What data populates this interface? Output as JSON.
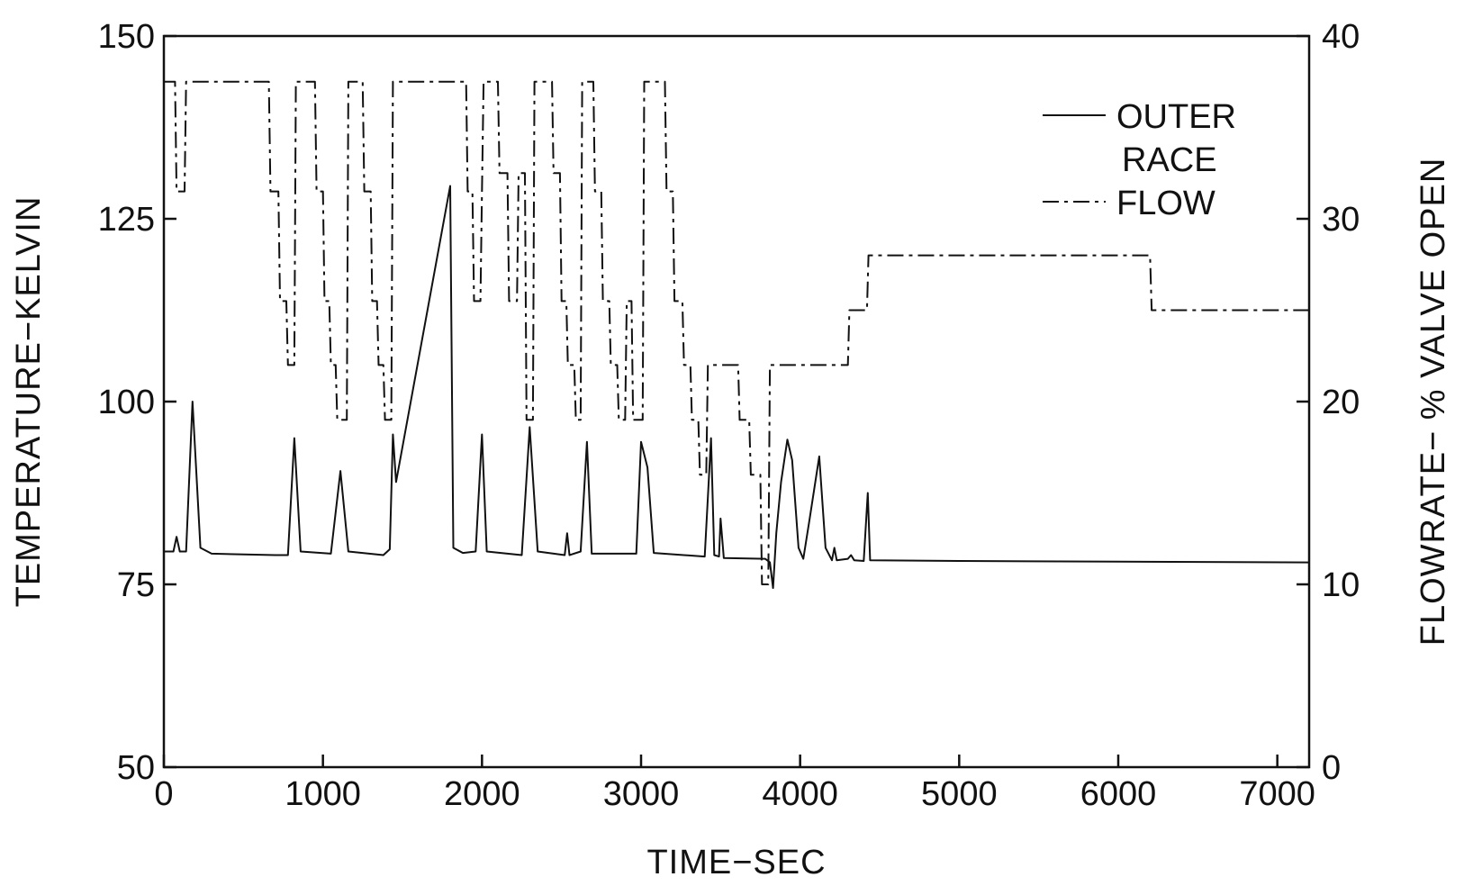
{
  "chart_data": {
    "type": "line",
    "xlabel": "TIME−SEC",
    "ylabel_left": "TEMPERATURE−KELVIN",
    "ylabel_right": "FLOWRATE− % VALVE OPEN",
    "xlim": [
      0,
      7200
    ],
    "ylim_left": [
      50,
      150
    ],
    "ylim_right": [
      0,
      40
    ],
    "x_ticks": [
      0,
      1000,
      2000,
      3000,
      4000,
      5000,
      6000,
      7000
    ],
    "y_left_ticks": [
      50,
      75,
      100,
      125,
      150
    ],
    "y_right_ticks": [
      0,
      10,
      20,
      30,
      40
    ],
    "grid": false,
    "legend_position": "top-right",
    "legend": [
      "OUTER",
      "RACE",
      "FLOW"
    ],
    "series": [
      {
        "name": "OUTER RACE",
        "axis": "left",
        "style": "solid",
        "points": [
          [
            0,
            79.5
          ],
          [
            60,
            79.5
          ],
          [
            80,
            81.5
          ],
          [
            100,
            79.5
          ],
          [
            140,
            79.5
          ],
          [
            180,
            100
          ],
          [
            230,
            80
          ],
          [
            300,
            79.2
          ],
          [
            700,
            79
          ],
          [
            780,
            79
          ],
          [
            820,
            95
          ],
          [
            860,
            79.5
          ],
          [
            1050,
            79.2
          ],
          [
            1110,
            90.5
          ],
          [
            1160,
            79.5
          ],
          [
            1380,
            79
          ],
          [
            1420,
            79.8
          ],
          [
            1440,
            95.5
          ],
          [
            1460,
            89
          ],
          [
            1800,
            129.5
          ],
          [
            1820,
            80
          ],
          [
            1880,
            79.3
          ],
          [
            1960,
            79.5
          ],
          [
            2000,
            95.5
          ],
          [
            2030,
            79.5
          ],
          [
            2250,
            79
          ],
          [
            2300,
            96.5
          ],
          [
            2350,
            79.5
          ],
          [
            2520,
            79
          ],
          [
            2535,
            82
          ],
          [
            2550,
            79
          ],
          [
            2620,
            79.5
          ],
          [
            2660,
            94.5
          ],
          [
            2690,
            79.2
          ],
          [
            2970,
            79.2
          ],
          [
            3000,
            94.5
          ],
          [
            3040,
            91
          ],
          [
            3080,
            79.3
          ],
          [
            3400,
            78.8
          ],
          [
            3440,
            95
          ],
          [
            3460,
            79
          ],
          [
            3490,
            78.8
          ],
          [
            3500,
            84
          ],
          [
            3520,
            78.6
          ],
          [
            3780,
            78.5
          ],
          [
            3810,
            78
          ],
          [
            3830,
            74.5
          ],
          [
            3850,
            82
          ],
          [
            3880,
            89
          ],
          [
            3920,
            94.8
          ],
          [
            3950,
            92
          ],
          [
            3990,
            80
          ],
          [
            4020,
            78.5
          ],
          [
            4060,
            84
          ],
          [
            4120,
            92.5
          ],
          [
            4160,
            80
          ],
          [
            4200,
            78.3
          ],
          [
            4215,
            80
          ],
          [
            4230,
            78.3
          ],
          [
            4300,
            78.5
          ],
          [
            4320,
            79
          ],
          [
            4340,
            78.3
          ],
          [
            4400,
            78.2
          ],
          [
            4425,
            87.5
          ],
          [
            4440,
            78.3
          ],
          [
            5000,
            78.2
          ],
          [
            6000,
            78.1
          ],
          [
            7200,
            78
          ]
        ]
      },
      {
        "name": "FLOW",
        "axis": "right",
        "style": "dash-dot",
        "points": [
          [
            0,
            37.5
          ],
          [
            70,
            37.5
          ],
          [
            80,
            31.5
          ],
          [
            130,
            31.5
          ],
          [
            140,
            37.5
          ],
          [
            660,
            37.5
          ],
          [
            670,
            31.5
          ],
          [
            720,
            31.5
          ],
          [
            730,
            25.5
          ],
          [
            770,
            25.5
          ],
          [
            780,
            22
          ],
          [
            820,
            22
          ],
          [
            830,
            37.5
          ],
          [
            950,
            37.5
          ],
          [
            960,
            31.5
          ],
          [
            1000,
            31.5
          ],
          [
            1010,
            25.5
          ],
          [
            1040,
            25.5
          ],
          [
            1050,
            22
          ],
          [
            1080,
            22
          ],
          [
            1090,
            19
          ],
          [
            1150,
            19
          ],
          [
            1160,
            37.5
          ],
          [
            1250,
            37.5
          ],
          [
            1260,
            31.5
          ],
          [
            1300,
            31.5
          ],
          [
            1310,
            25.5
          ],
          [
            1340,
            25.5
          ],
          [
            1350,
            22
          ],
          [
            1380,
            22
          ],
          [
            1390,
            19
          ],
          [
            1430,
            19
          ],
          [
            1440,
            37.5
          ],
          [
            1900,
            37.5
          ],
          [
            1910,
            31.5
          ],
          [
            1940,
            31.5
          ],
          [
            1950,
            25.5
          ],
          [
            1990,
            25.5
          ],
          [
            2000,
            31.5
          ],
          [
            2010,
            37.5
          ],
          [
            2100,
            37.5
          ],
          [
            2110,
            32.5
          ],
          [
            2160,
            32.5
          ],
          [
            2170,
            25.5
          ],
          [
            2220,
            25.5
          ],
          [
            2230,
            32.5
          ],
          [
            2270,
            32.5
          ],
          [
            2280,
            19
          ],
          [
            2320,
            19
          ],
          [
            2330,
            37.5
          ],
          [
            2440,
            37.5
          ],
          [
            2450,
            32.5
          ],
          [
            2490,
            32.5
          ],
          [
            2500,
            25.5
          ],
          [
            2530,
            25.5
          ],
          [
            2540,
            22
          ],
          [
            2580,
            22
          ],
          [
            2590,
            19
          ],
          [
            2620,
            19
          ],
          [
            2630,
            37.5
          ],
          [
            2700,
            37.5
          ],
          [
            2710,
            31.5
          ],
          [
            2750,
            31.5
          ],
          [
            2760,
            25.5
          ],
          [
            2800,
            25.5
          ],
          [
            2810,
            22
          ],
          [
            2850,
            22
          ],
          [
            2860,
            19
          ],
          [
            2900,
            19
          ],
          [
            2910,
            25.5
          ],
          [
            2940,
            25.5
          ],
          [
            2950,
            19
          ],
          [
            3010,
            19
          ],
          [
            3020,
            37.5
          ],
          [
            3150,
            37.5
          ],
          [
            3160,
            31.5
          ],
          [
            3200,
            31.5
          ],
          [
            3210,
            25.5
          ],
          [
            3260,
            25.5
          ],
          [
            3270,
            22
          ],
          [
            3310,
            22
          ],
          [
            3320,
            19
          ],
          [
            3360,
            19
          ],
          [
            3370,
            16
          ],
          [
            3410,
            16
          ],
          [
            3420,
            22
          ],
          [
            3610,
            22
          ],
          [
            3620,
            19
          ],
          [
            3680,
            19
          ],
          [
            3690,
            16
          ],
          [
            3750,
            16
          ],
          [
            3760,
            10
          ],
          [
            3800,
            10
          ],
          [
            3810,
            22
          ],
          [
            4300,
            22
          ],
          [
            4310,
            25
          ],
          [
            4420,
            25
          ],
          [
            4430,
            28
          ],
          [
            6200,
            28
          ],
          [
            6210,
            25
          ],
          [
            7200,
            25
          ]
        ]
      }
    ]
  }
}
